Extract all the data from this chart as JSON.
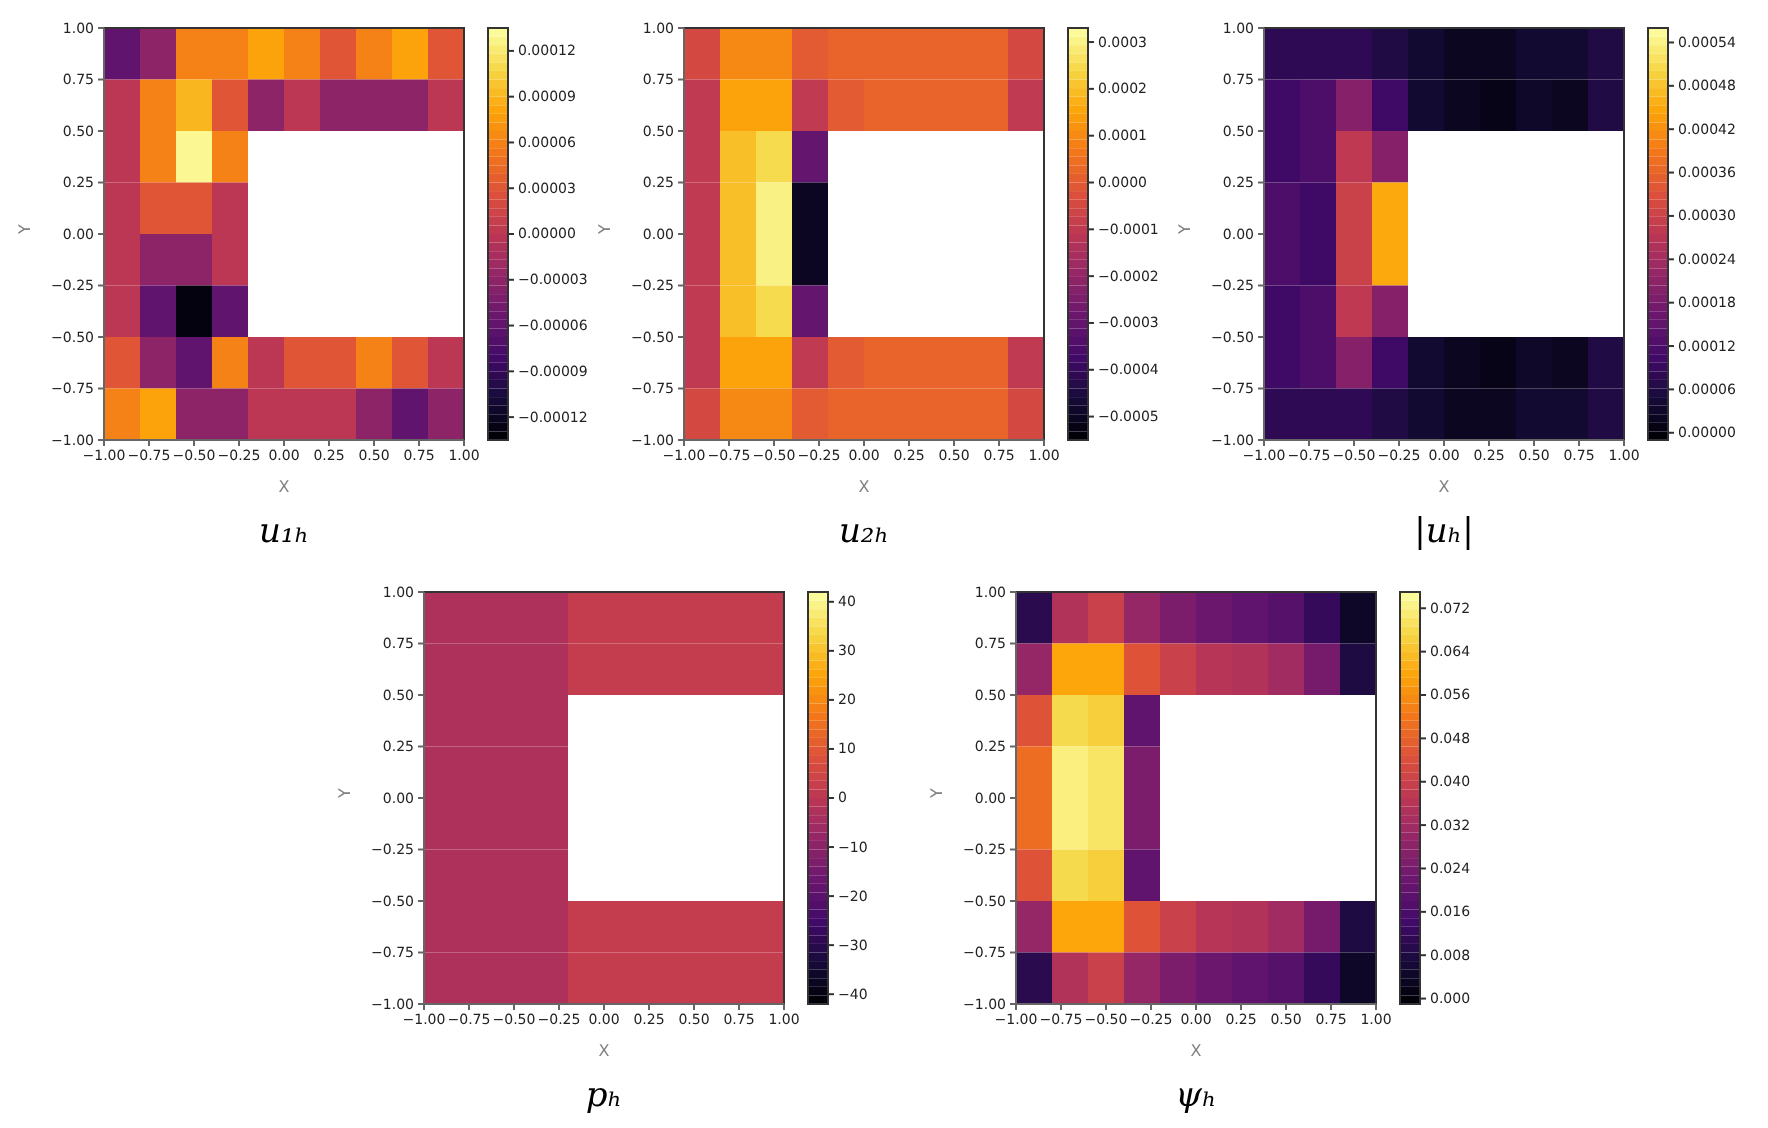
{
  "chart_data": [
    {
      "type": "heatmap",
      "title": "u₁ₕ",
      "xlabel": "X",
      "ylabel": "Y",
      "xlim": [
        -1,
        1
      ],
      "ylim": [
        -1,
        1
      ],
      "xticks": [
        {
          "value": -1,
          "label": "−1.00"
        },
        {
          "value": -0.75,
          "label": "−0.75"
        },
        {
          "value": -0.5,
          "label": "−0.50"
        },
        {
          "value": -0.25,
          "label": "−0.25"
        },
        {
          "value": 0,
          "label": "0.00"
        },
        {
          "value": 0.25,
          "label": "0.25"
        },
        {
          "value": 0.5,
          "label": "0.50"
        },
        {
          "value": 0.75,
          "label": "0.75"
        },
        {
          "value": 1,
          "label": "1.00"
        }
      ],
      "yticks": [
        {
          "value": -1,
          "label": "−1.00"
        },
        {
          "value": -0.75,
          "label": "−0.75"
        },
        {
          "value": -0.5,
          "label": "−0.50"
        },
        {
          "value": -0.25,
          "label": "−0.25"
        },
        {
          "value": 0,
          "label": "0.00"
        },
        {
          "value": 0.25,
          "label": "0.25"
        },
        {
          "value": 0.5,
          "label": "0.50"
        },
        {
          "value": 0.75,
          "label": "0.75"
        },
        {
          "value": 1,
          "label": "1.00"
        }
      ],
      "clim": [
        -0.000135,
        0.000135
      ],
      "cticks": [
        {
          "value": 0.00012,
          "label": "0.00012"
        },
        {
          "value": 9e-05,
          "label": "0.00009"
        },
        {
          "value": 6e-05,
          "label": "0.00006"
        },
        {
          "value": 3e-05,
          "label": "0.00003"
        },
        {
          "value": 0,
          "label": "0.00000"
        },
        {
          "value": -3e-05,
          "label": "−0.00003"
        },
        {
          "value": -6e-05,
          "label": "−0.00006"
        },
        {
          "value": -9e-05,
          "label": "−0.00009"
        },
        {
          "value": -0.00012,
          "label": "−0.00012"
        }
      ],
      "cells": [
        [
          -6e-05,
          -3e-05,
          6e-05,
          6e-05,
          8e-05,
          6e-05,
          3e-05,
          6e-05,
          8e-05,
          3e-05
        ],
        [
          0,
          6e-05,
          9e-05,
          3e-05,
          -3e-05,
          0,
          -3e-05,
          -3e-05,
          -3e-05,
          0
        ],
        [
          0,
          6e-05,
          0.00013,
          6e-05,
          null,
          null,
          null,
          null,
          null,
          null
        ],
        [
          0,
          3e-05,
          3e-05,
          0,
          null,
          null,
          null,
          null,
          null,
          null
        ],
        [
          0,
          -3e-05,
          -3e-05,
          0,
          null,
          null,
          null,
          null,
          null,
          null
        ],
        [
          0,
          -6e-05,
          -0.00013,
          -6e-05,
          null,
          null,
          null,
          null,
          null,
          null
        ],
        [
          3e-05,
          -3e-05,
          -6e-05,
          6e-05,
          0,
          3e-05,
          3e-05,
          6e-05,
          3e-05,
          0
        ],
        [
          6e-05,
          8e-05,
          -3e-05,
          -3e-05,
          0,
          0,
          0,
          -3e-05,
          -6e-05,
          -3e-05
        ]
      ]
    },
    {
      "type": "heatmap",
      "title": "u₂ₕ",
      "xlabel": "X",
      "ylabel": "Y",
      "xlim": [
        -1,
        1
      ],
      "ylim": [
        -1,
        1
      ],
      "xticks": [
        {
          "value": -1,
          "label": "−1.00"
        },
        {
          "value": -0.75,
          "label": "−0.75"
        },
        {
          "value": -0.5,
          "label": "−0.50"
        },
        {
          "value": -0.25,
          "label": "−0.25"
        },
        {
          "value": 0,
          "label": "0.00"
        },
        {
          "value": 0.25,
          "label": "0.25"
        },
        {
          "value": 0.5,
          "label": "0.50"
        },
        {
          "value": 0.75,
          "label": "0.75"
        },
        {
          "value": 1,
          "label": "1.00"
        }
      ],
      "yticks": [
        {
          "value": -1,
          "label": "−1.00"
        },
        {
          "value": -0.75,
          "label": "−0.75"
        },
        {
          "value": -0.5,
          "label": "−0.50"
        },
        {
          "value": -0.25,
          "label": "−0.25"
        },
        {
          "value": 0,
          "label": "0.00"
        },
        {
          "value": 0.25,
          "label": "0.25"
        },
        {
          "value": 0.5,
          "label": "0.50"
        },
        {
          "value": 0.75,
          "label": "0.75"
        },
        {
          "value": 1,
          "label": "1.00"
        }
      ],
      "clim": [
        -0.00055,
        0.00033
      ],
      "cticks": [
        0.0003,
        0.0002,
        0.0001,
        {
          "value": 0,
          "label": "0.0000"
        },
        {
          "value": -0.0001,
          "label": "−0.0001"
        },
        {
          "value": -0.0002,
          "label": "−0.0002"
        },
        {
          "value": -0.0003,
          "label": "−0.0003"
        },
        {
          "value": -0.0004,
          "label": "−0.0004"
        },
        {
          "value": -0.0005,
          "label": "−0.0005"
        }
      ],
      "cells": [
        [
          -5e-05,
          0.0001,
          0.0001,
          0,
          2e-05,
          2e-05,
          2e-05,
          2e-05,
          2e-05,
          -5e-05
        ],
        [
          -0.0001,
          0.00015,
          0.00015,
          -0.0001,
          0,
          2e-05,
          2e-05,
          2e-05,
          2e-05,
          -0.0001
        ],
        [
          -0.0001,
          0.0002,
          0.00025,
          -0.0003,
          null,
          null,
          null,
          null,
          null,
          null
        ],
        [
          -0.0001,
          0.0002,
          0.0003,
          -0.0005,
          null,
          null,
          null,
          null,
          null,
          null
        ],
        [
          -0.0001,
          0.0002,
          0.0003,
          -0.0005,
          null,
          null,
          null,
          null,
          null,
          null
        ],
        [
          -0.0001,
          0.0002,
          0.00025,
          -0.0003,
          null,
          null,
          null,
          null,
          null,
          null
        ],
        [
          -0.0001,
          0.00015,
          0.00015,
          -0.0001,
          0,
          2e-05,
          2e-05,
          2e-05,
          2e-05,
          -0.0001
        ],
        [
          -5e-05,
          0.0001,
          0.0001,
          0,
          2e-05,
          2e-05,
          2e-05,
          2e-05,
          2e-05,
          -5e-05
        ]
      ]
    },
    {
      "type": "heatmap",
      "title": "|uₕ|",
      "xlabel": "X",
      "ylabel": "Y",
      "xlim": [
        -1,
        1
      ],
      "ylim": [
        -1,
        1
      ],
      "xticks": [
        {
          "value": -1,
          "label": "−1.00"
        },
        {
          "value": -0.75,
          "label": "−0.75"
        },
        {
          "value": -0.5,
          "label": "−0.50"
        },
        {
          "value": -0.25,
          "label": "−0.25"
        },
        {
          "value": 0,
          "label": "0.00"
        },
        {
          "value": 0.25,
          "label": "0.25"
        },
        {
          "value": 0.5,
          "label": "0.50"
        },
        {
          "value": 0.75,
          "label": "0.75"
        },
        {
          "value": 1,
          "label": "1.00"
        }
      ],
      "yticks": [
        {
          "value": -1,
          "label": "−1.00"
        },
        {
          "value": -0.75,
          "label": "−0.75"
        },
        {
          "value": -0.5,
          "label": "−0.50"
        },
        {
          "value": -0.25,
          "label": "−0.25"
        },
        {
          "value": 0,
          "label": "0.00"
        },
        {
          "value": 0.25,
          "label": "0.25"
        },
        {
          "value": 0.5,
          "label": "0.50"
        },
        {
          "value": 0.75,
          "label": "0.75"
        },
        {
          "value": 1,
          "label": "1.00"
        }
      ],
      "clim": [
        -1e-05,
        0.00056
      ],
      "cticks": [
        {
          "value": 0.00054,
          "label": "0.00054"
        },
        {
          "value": 0.00048,
          "label": "0.00048"
        },
        {
          "value": 0.00042,
          "label": "0.00042"
        },
        {
          "value": 0.00036,
          "label": "0.00036"
        },
        {
          "value": 0.0003,
          "label": "0.00030"
        },
        {
          "value": 0.00024,
          "label": "0.00024"
        },
        {
          "value": 0.00018,
          "label": "0.00018"
        },
        {
          "value": 0.00012,
          "label": "0.00012"
        },
        {
          "value": 6e-05,
          "label": "0.00006"
        },
        {
          "value": 0,
          "label": "0.00000"
        }
      ],
      "cells": [
        [
          8e-05,
          8e-05,
          8e-05,
          6e-05,
          4e-05,
          2e-05,
          2e-05,
          4e-05,
          4e-05,
          6e-05
        ],
        [
          0.0001,
          0.00012,
          0.0002,
          0.0001,
          4e-05,
          2e-05,
          1e-05,
          3e-05,
          2e-05,
          6e-05
        ],
        [
          0.0001,
          0.00012,
          0.00028,
          0.0002,
          null,
          null,
          null,
          null,
          null,
          null
        ],
        [
          0.00012,
          0.0001,
          0.0003,
          0.00045,
          null,
          null,
          null,
          null,
          null,
          null
        ],
        [
          0.00012,
          0.0001,
          0.0003,
          0.00045,
          null,
          null,
          null,
          null,
          null,
          null
        ],
        [
          0.0001,
          0.00012,
          0.00028,
          0.0002,
          null,
          null,
          null,
          null,
          null,
          null
        ],
        [
          0.0001,
          0.00012,
          0.0002,
          0.0001,
          4e-05,
          2e-05,
          1e-05,
          3e-05,
          2e-05,
          6e-05
        ],
        [
          8e-05,
          8e-05,
          8e-05,
          6e-05,
          4e-05,
          2e-05,
          2e-05,
          4e-05,
          4e-05,
          6e-05
        ]
      ]
    },
    {
      "type": "heatmap",
      "title": "pₕ",
      "xlabel": "X",
      "ylabel": "Y",
      "xlim": [
        -1,
        1
      ],
      "ylim": [
        -1,
        1
      ],
      "xticks": [
        {
          "value": -1,
          "label": "−1.00"
        },
        {
          "value": -0.75,
          "label": "−0.75"
        },
        {
          "value": -0.5,
          "label": "−0.50"
        },
        {
          "value": -0.25,
          "label": "−0.25"
        },
        {
          "value": 0,
          "label": "0.00"
        },
        {
          "value": 0.25,
          "label": "0.25"
        },
        {
          "value": 0.5,
          "label": "0.50"
        },
        {
          "value": 0.75,
          "label": "0.75"
        },
        {
          "value": 1,
          "label": "1.00"
        }
      ],
      "yticks": [
        {
          "value": -1,
          "label": "−1.00"
        },
        {
          "value": -0.75,
          "label": "−0.75"
        },
        {
          "value": -0.5,
          "label": "−0.50"
        },
        {
          "value": -0.25,
          "label": "−0.25"
        },
        {
          "value": 0,
          "label": "0.00"
        },
        {
          "value": 0.25,
          "label": "0.25"
        },
        {
          "value": 0.5,
          "label": "0.50"
        },
        {
          "value": 0.75,
          "label": "0.75"
        },
        {
          "value": 1,
          "label": "1.00"
        }
      ],
      "clim": [
        -42,
        42
      ],
      "cticks": [
        40,
        30,
        20,
        10,
        0,
        {
          "value": -10,
          "label": "−10"
        },
        {
          "value": -20,
          "label": "−20"
        },
        {
          "value": -30,
          "label": "−30"
        },
        {
          "value": -40,
          "label": "−40"
        }
      ],
      "cells": [
        [
          -3,
          -3,
          -3,
          -3,
          2,
          2,
          2,
          2,
          2,
          2
        ],
        [
          -3,
          -3,
          -3,
          -3,
          2,
          2,
          2,
          2,
          2,
          2
        ],
        [
          -3,
          -3,
          -3,
          -3,
          null,
          null,
          null,
          null,
          null,
          null
        ],
        [
          -3,
          -3,
          -3,
          -3,
          null,
          null,
          null,
          null,
          null,
          null
        ],
        [
          -3,
          -3,
          -3,
          -3,
          null,
          null,
          null,
          null,
          null,
          null
        ],
        [
          -3,
          -3,
          -3,
          -3,
          null,
          null,
          null,
          null,
          null,
          null
        ],
        [
          -3,
          -3,
          -3,
          -3,
          2,
          2,
          2,
          2,
          2,
          2
        ],
        [
          -3,
          -3,
          -3,
          -3,
          2,
          2,
          2,
          2,
          2,
          2
        ]
      ]
    },
    {
      "type": "heatmap",
      "title": "ψₕ",
      "xlabel": "X",
      "ylabel": "Y",
      "xlim": [
        -1,
        1
      ],
      "ylim": [
        -1,
        1
      ],
      "xticks": [
        {
          "value": -1,
          "label": "−1.00"
        },
        {
          "value": -0.75,
          "label": "−0.75"
        },
        {
          "value": -0.5,
          "label": "−0.50"
        },
        {
          "value": -0.25,
          "label": "−0.25"
        },
        {
          "value": 0,
          "label": "0.00"
        },
        {
          "value": 0.25,
          "label": "0.25"
        },
        {
          "value": 0.5,
          "label": "0.50"
        },
        {
          "value": 0.75,
          "label": "0.75"
        },
        {
          "value": 1,
          "label": "1.00"
        }
      ],
      "yticks": [
        {
          "value": -1,
          "label": "−1.00"
        },
        {
          "value": -0.75,
          "label": "−0.75"
        },
        {
          "value": -0.5,
          "label": "−0.50"
        },
        {
          "value": -0.25,
          "label": "−0.25"
        },
        {
          "value": 0,
          "label": "0.00"
        },
        {
          "value": 0.25,
          "label": "0.25"
        },
        {
          "value": 0.5,
          "label": "0.50"
        },
        {
          "value": 0.75,
          "label": "0.75"
        },
        {
          "value": 1,
          "label": "1.00"
        }
      ],
      "clim": [
        -0.001,
        0.075
      ],
      "cticks": [
        0.072,
        0.064,
        0.056,
        0.048,
        {
          "value": 0.04,
          "label": "0.040"
        },
        0.032,
        0.024,
        0.016,
        0.008,
        {
          "value": 0,
          "label": "0.000"
        }
      ],
      "cells": [
        [
          0.01,
          0.035,
          0.04,
          0.03,
          0.025,
          0.022,
          0.02,
          0.018,
          0.012,
          0.004
        ],
        [
          0.03,
          0.06,
          0.06,
          0.045,
          0.04,
          0.036,
          0.035,
          0.032,
          0.024,
          0.008
        ],
        [
          0.045,
          0.068,
          0.066,
          0.02,
          null,
          null,
          null,
          null,
          null,
          null
        ],
        [
          0.05,
          0.072,
          0.07,
          0.025,
          null,
          null,
          null,
          null,
          null,
          null
        ],
        [
          0.05,
          0.072,
          0.07,
          0.025,
          null,
          null,
          null,
          null,
          null,
          null
        ],
        [
          0.045,
          0.068,
          0.066,
          0.02,
          null,
          null,
          null,
          null,
          null,
          null
        ],
        [
          0.03,
          0.06,
          0.06,
          0.045,
          0.04,
          0.036,
          0.035,
          0.032,
          0.024,
          0.008
        ],
        [
          0.01,
          0.035,
          0.04,
          0.03,
          0.025,
          0.022,
          0.02,
          0.018,
          0.012,
          0.004
        ]
      ]
    }
  ]
}
